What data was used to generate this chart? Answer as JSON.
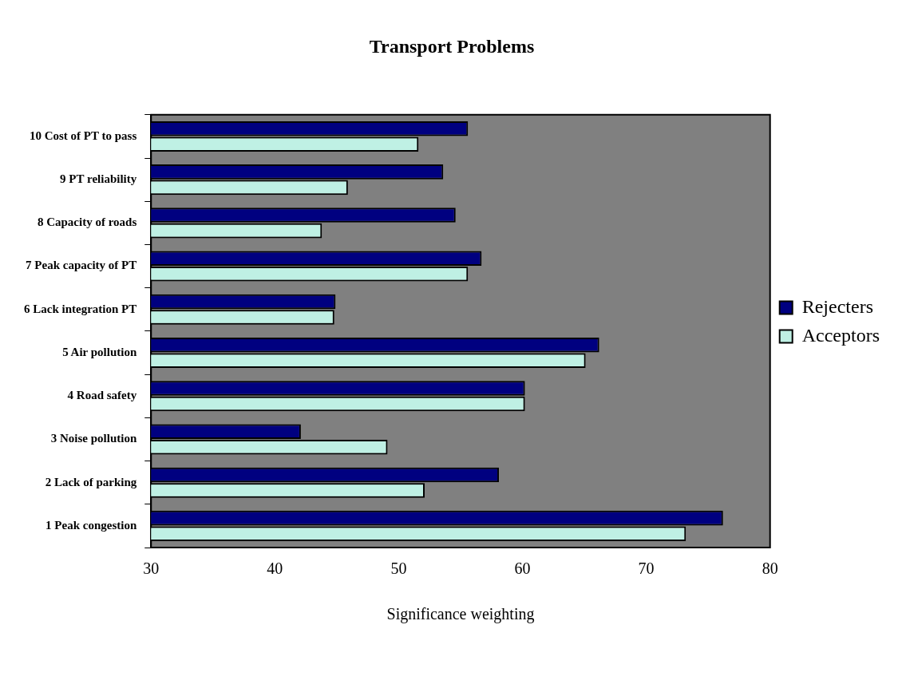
{
  "chart_data": {
    "type": "bar",
    "orientation": "horizontal",
    "title": "Transport Problems",
    "xlabel": "Significance weighting",
    "categories": [
      "10 Cost of PT to pass",
      "9 PT reliability",
      "8 Capacity of roads",
      "7 Peak capacity of PT",
      "6 Lack integration PT",
      "5 Air pollution",
      "4 Road safety",
      "3 Noise pollution",
      "2 Lack of parking",
      "1 Peak congestion"
    ],
    "series": [
      {
        "name": "Rejecters",
        "color": "#000080",
        "values": [
          55.6,
          53.6,
          54.6,
          56.7,
          44.9,
          66.2,
          60.2,
          42.1,
          58.1,
          76.2
        ]
      },
      {
        "name": "Acceptors",
        "color": "#bff0e4",
        "values": [
          51.6,
          45.9,
          43.8,
          55.6,
          44.8,
          65.1,
          60.2,
          49.1,
          52.1,
          73.2
        ]
      }
    ],
    "xlim": [
      30,
      80
    ],
    "xticks": [
      30,
      40,
      50,
      60,
      70,
      80
    ],
    "grid": false,
    "legend": "right"
  }
}
